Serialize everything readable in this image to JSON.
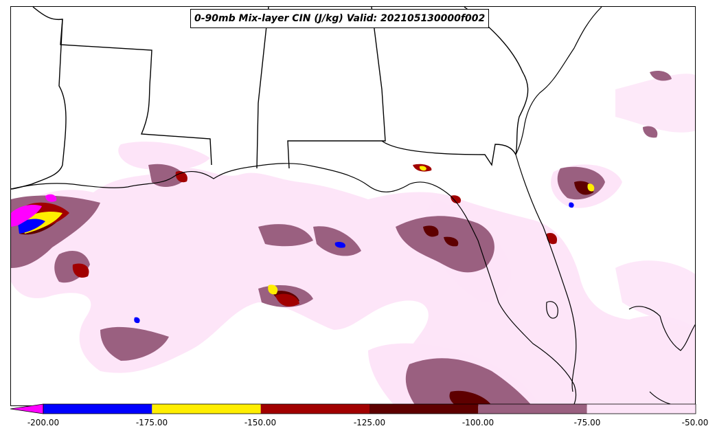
{
  "title": "0-90mb Mix-layer CIN (J/kg) Valid: 202105130000f002",
  "colorbar": {
    "extend": "min",
    "extend_color": "#ff00ff",
    "bins": [
      {
        "from": -200,
        "to": -175,
        "color": "#0000ff"
      },
      {
        "from": -175,
        "to": -150,
        "color": "#ffee00"
      },
      {
        "from": -150,
        "to": -125,
        "color": "#a10000"
      },
      {
        "from": -125,
        "to": -100,
        "color": "#5e0000"
      },
      {
        "from": -100,
        "to": -75,
        "color": "#9a6080"
      },
      {
        "from": -75,
        "to": -50,
        "color": "#fde4f8"
      }
    ],
    "tick_labels": [
      "-200.00",
      "-175.00",
      "-150.00",
      "-125.00",
      "-100.00",
      "-75.00",
      "-50.00"
    ]
  },
  "map": {
    "region": "Gulf of Mexico / Southeast US",
    "borders_color": "#000000",
    "legend_placement": "bottom"
  }
}
